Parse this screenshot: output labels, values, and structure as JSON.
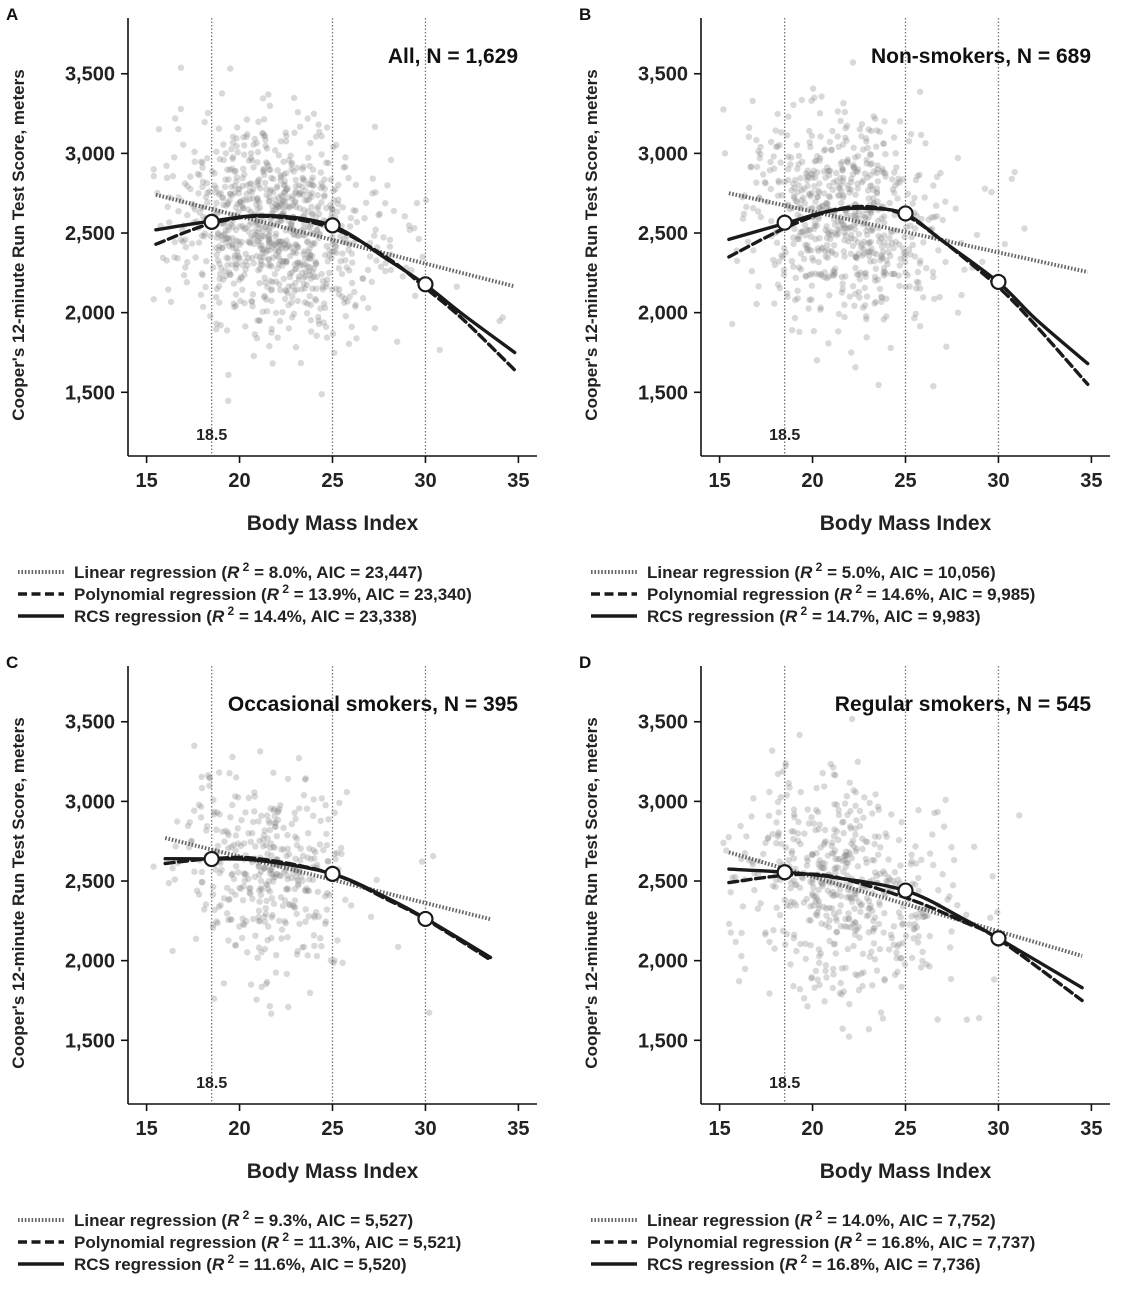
{
  "figure": {
    "common": {
      "xlabel": "Body Mass Index",
      "ylabel": "Cooper's 12-minute Run Test Score, meters",
      "x_ticks": [
        15,
        20,
        25,
        30,
        35
      ],
      "y_ticks": [
        1500,
        2000,
        2500,
        3000,
        3500
      ],
      "x_tick_labels": [
        "15",
        "20",
        "25",
        "30",
        "35"
      ],
      "y_tick_labels": [
        "1,500",
        "2,000",
        "2,500",
        "3,000",
        "3,500"
      ],
      "xlim": [
        14,
        36
      ],
      "ylim": [
        1100,
        3850
      ],
      "ref_lines": [
        18.5,
        25,
        30
      ],
      "ref_label": "18.5",
      "legend_labels": {
        "linear": "Linear regression",
        "poly": "Polynomial regression",
        "rcs": "RCS regression"
      },
      "r2_symbol": "R",
      "r2_sup": "2"
    },
    "colors": {
      "points": "#8a8a8a",
      "lines": "#1a1a1a",
      "ref_lines": "#777777",
      "markers_fill": "#ffffff"
    }
  },
  "chart_data": [
    {
      "type": "scatter",
      "panel": "A",
      "title": "All, N = 1,629",
      "n_points": 1629,
      "point_center": {
        "bmi": 21.8,
        "score": 2550
      },
      "point_spread": {
        "bmi": 2.6,
        "score": 340
      },
      "series": [
        {
          "name": "Linear regression",
          "key": "linear",
          "stat_r2": "8.0%",
          "stat_aic": "23,447",
          "x": [
            15.5,
            34.8
          ],
          "y": [
            2740,
            2165
          ]
        },
        {
          "name": "Polynomial regression",
          "key": "poly",
          "stat_r2": "13.9%",
          "stat_aic": "23,340",
          "x": [
            15.5,
            18.5,
            21.5,
            25,
            28,
            30,
            32,
            34.8
          ],
          "y": [
            2430,
            2560,
            2605,
            2530,
            2340,
            2155,
            1960,
            1640
          ]
        },
        {
          "name": "RCS regression",
          "key": "rcs",
          "stat_r2": "14.4%",
          "stat_aic": "23,338",
          "x": [
            15.5,
            18.5,
            21.5,
            25,
            28,
            30,
            32,
            34.8
          ],
          "y": [
            2520,
            2575,
            2610,
            2545,
            2330,
            2175,
            1990,
            1750
          ]
        }
      ],
      "knots": {
        "x": [
          18.5,
          25,
          30
        ],
        "y": [
          2570,
          2548,
          2178
        ]
      }
    },
    {
      "type": "scatter",
      "panel": "B",
      "title": "Non-smokers, N = 689",
      "n_points": 689,
      "point_center": {
        "bmi": 21.8,
        "score": 2600
      },
      "point_spread": {
        "bmi": 2.5,
        "score": 330
      },
      "series": [
        {
          "name": "Linear regression",
          "key": "linear",
          "stat_r2": "5.0%",
          "stat_aic": "10,056",
          "x": [
            15.5,
            34.8
          ],
          "y": [
            2750,
            2255
          ]
        },
        {
          "name": "Polynomial regression",
          "key": "poly",
          "stat_r2": "14.6%",
          "stat_aic": "9,985",
          "x": [
            15.5,
            18.5,
            21,
            23,
            25,
            27,
            30,
            32,
            34.8
          ],
          "y": [
            2350,
            2530,
            2640,
            2665,
            2610,
            2450,
            2160,
            1920,
            1550
          ]
        },
        {
          "name": "RCS regression",
          "key": "rcs",
          "stat_r2": "14.7%",
          "stat_aic": "9,983",
          "x": [
            15.5,
            18.5,
            21,
            23,
            25,
            27,
            30,
            32,
            34.8
          ],
          "y": [
            2460,
            2560,
            2640,
            2655,
            2620,
            2450,
            2190,
            1960,
            1680
          ]
        }
      ],
      "knots": {
        "x": [
          18.5,
          25,
          30
        ],
        "y": [
          2565,
          2623,
          2193
        ]
      }
    },
    {
      "type": "scatter",
      "panel": "C",
      "title": "Occasional smokers, N = 395",
      "n_points": 395,
      "point_center": {
        "bmi": 21.5,
        "score": 2580
      },
      "point_spread": {
        "bmi": 2.2,
        "score": 300
      },
      "series": [
        {
          "name": "Linear regression",
          "key": "linear",
          "stat_r2": "9.3%",
          "stat_aic": "5,527",
          "x": [
            16,
            33.5
          ],
          "y": [
            2770,
            2260
          ]
        },
        {
          "name": "Polynomial regression",
          "key": "poly",
          "stat_r2": "11.3%",
          "stat_aic": "5,521",
          "x": [
            16,
            18.5,
            21,
            25,
            28,
            30,
            33.5
          ],
          "y": [
            2610,
            2640,
            2640,
            2545,
            2380,
            2260,
            2005
          ]
        },
        {
          "name": "RCS regression",
          "key": "rcs",
          "stat_r2": "11.6%",
          "stat_aic": "5,520",
          "x": [
            16,
            18.5,
            21,
            25,
            28,
            30,
            33.5
          ],
          "y": [
            2640,
            2638,
            2630,
            2545,
            2390,
            2265,
            2020
          ]
        }
      ],
      "knots": {
        "x": [
          18.5,
          25,
          30
        ],
        "y": [
          2638,
          2545,
          2262
        ]
      }
    },
    {
      "type": "scatter",
      "panel": "D",
      "title": "Regular smokers, N = 545",
      "n_points": 545,
      "point_center": {
        "bmi": 21.6,
        "score": 2480
      },
      "point_spread": {
        "bmi": 2.6,
        "score": 330
      },
      "series": [
        {
          "name": "Linear regression",
          "key": "linear",
          "stat_r2": "14.0%",
          "stat_aic": "7,752",
          "x": [
            15.5,
            34.5
          ],
          "y": [
            2680,
            2030
          ]
        },
        {
          "name": "Polynomial regression",
          "key": "poly",
          "stat_r2": "16.8%",
          "stat_aic": "7,737",
          "x": [
            15.5,
            18.5,
            21,
            25,
            28,
            30,
            34.5
          ],
          "y": [
            2490,
            2535,
            2530,
            2395,
            2250,
            2135,
            1750
          ]
        },
        {
          "name": "RCS regression",
          "key": "rcs",
          "stat_r2": "16.8%",
          "stat_aic": "7,736",
          "x": [
            15.5,
            18.5,
            21,
            25,
            28,
            30,
            34.5
          ],
          "y": [
            2575,
            2555,
            2525,
            2440,
            2270,
            2140,
            1830
          ]
        }
      ],
      "knots": {
        "x": [
          18.5,
          25,
          30
        ],
        "y": [
          2555,
          2440,
          2140
        ]
      }
    }
  ]
}
